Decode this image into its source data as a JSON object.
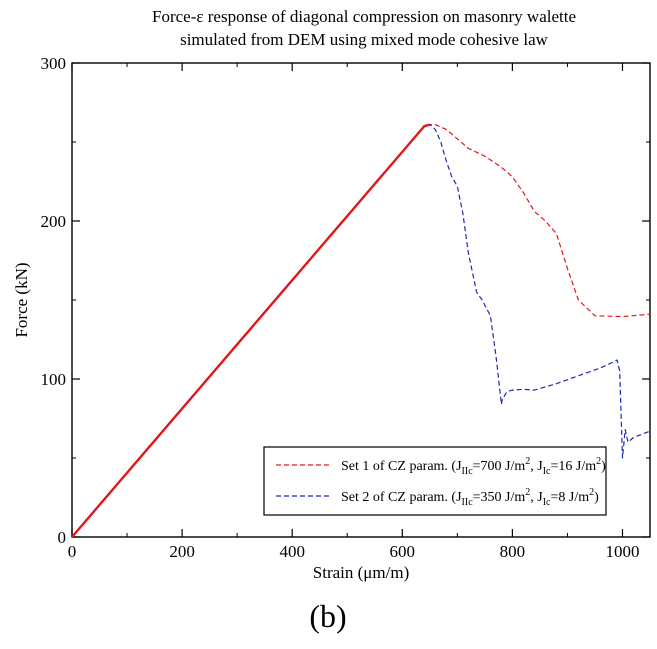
{
  "chart_data": {
    "type": "line",
    "title_line1": "Force-ε response of diagonal compression on masonry walette",
    "title_line2": "simulated from DEM using mixed mode cohesive law",
    "xlabel": "Strain (μm/m)",
    "ylabel": "Force (kN)",
    "xlim": [
      0,
      1050
    ],
    "ylim": [
      0,
      300
    ],
    "xticks": [
      0,
      200,
      400,
      600,
      800,
      1000
    ],
    "yticks": [
      0,
      100,
      200,
      300
    ],
    "grid": false,
    "legend_position": "bottom-right",
    "caption": "(b)",
    "series": [
      {
        "name": "Set 1 of CZ param.",
        "legend": {
          "prefix": "Set 1 of CZ param. (J",
          "sub1": "IIc",
          "mid1": "=700 J/m",
          "sup1": "2",
          "mid2": ", J",
          "sub2": "Ic",
          "mid3": "=16 J/m",
          "sup2": "2",
          "suffix": ")"
        },
        "color": "#e8141c",
        "dash": "dashed",
        "x": [
          0,
          640,
          650,
          660,
          680,
          700,
          720,
          750,
          780,
          800,
          820,
          840,
          860,
          880,
          900,
          920,
          950,
          1000,
          1050
        ],
        "y": [
          0,
          260,
          261,
          261,
          258,
          252,
          246,
          241,
          234,
          228,
          218,
          206,
          200,
          192,
          170,
          150,
          140,
          139.5,
          141
        ]
      },
      {
        "name": "Set 2 of CZ param.",
        "legend": {
          "prefix": "Set 2 of CZ param. (J",
          "sub1": "IIc",
          "mid1": "=350 J/m",
          "sup1": "2",
          "mid2": ", J",
          "sub2": "Ic",
          "mid3": "=8 J/m",
          "sup2": "2",
          "suffix": ")"
        },
        "color": "#1f2bb0",
        "dash": "dashed",
        "x": [
          0,
          640,
          650,
          660,
          670,
          680,
          690,
          700,
          710,
          720,
          735,
          745,
          760,
          770,
          775,
          780,
          782,
          785,
          790,
          800,
          820,
          840,
          880,
          920,
          960,
          985,
          990,
          995,
          1000,
          1005,
          1010,
          1020,
          1035,
          1050
        ],
        "y": [
          0,
          260,
          261,
          258,
          250,
          238,
          228,
          222,
          205,
          180,
          155,
          150,
          140,
          115,
          100,
          84,
          88,
          89,
          92,
          93,
          93.5,
          93,
          97,
          102,
          107,
          111,
          112,
          105,
          50,
          68,
          60,
          63,
          65,
          67
        ]
      },
      {
        "name": "",
        "color": "#e01818",
        "dash": "solid",
        "x": [
          0,
          640,
          650
        ],
        "y": [
          0,
          260,
          261
        ]
      }
    ]
  }
}
